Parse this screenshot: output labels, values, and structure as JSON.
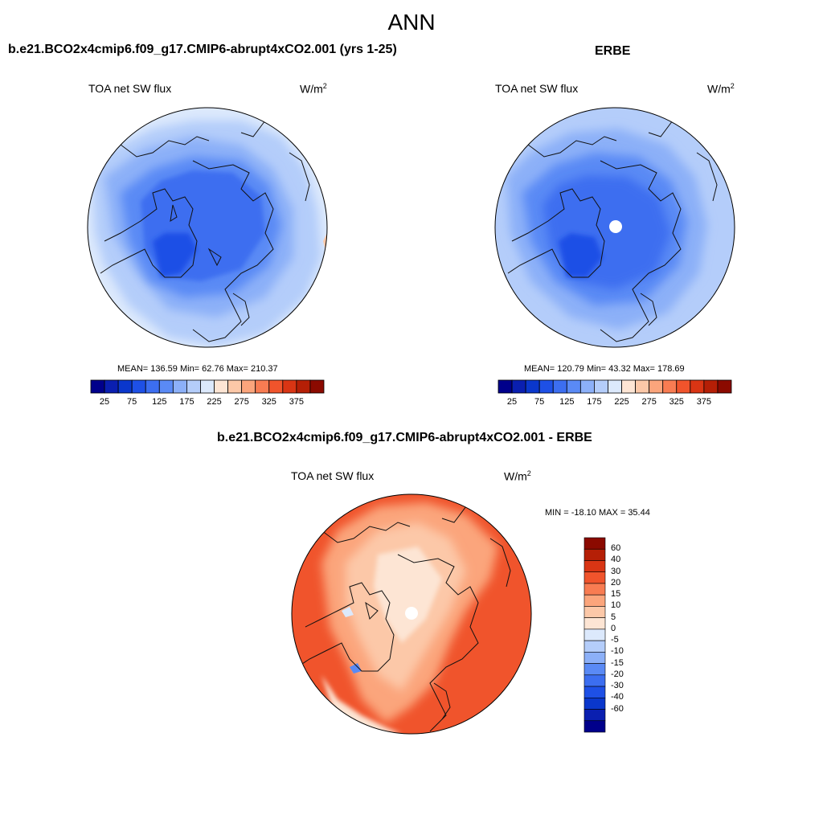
{
  "main_title": "ANN",
  "colors": {
    "palette": [
      "#00008b",
      "#0a1fb0",
      "#0a37cc",
      "#1e50e6",
      "#3c6ef0",
      "#5a8af5",
      "#8cb0f8",
      "#b4cdfa",
      "#dce9fc",
      "#fde5d4",
      "#fcc8a8",
      "#fba57c",
      "#f87c52",
      "#f0542c",
      "#d93514",
      "#b51f06",
      "#8b0a00"
    ],
    "polar_land": "#111111"
  },
  "panels": [
    {
      "id": "model",
      "title": "b.e21.BCO2x4cmip6.f09_g17.CMIP6-abrupt4xCO2.001 (yrs 1-25)",
      "variable": "TOA net SW flux",
      "units_base": "W/m",
      "units_exp": "2",
      "stats": "MEAN= 136.59  Min=  62.76  Max= 210.37",
      "colorbar_ticks": [
        "25",
        "75",
        "125",
        "175",
        "225",
        "275",
        "325",
        "375"
      ]
    },
    {
      "id": "obs",
      "title": "ERBE",
      "variable": "TOA net SW flux",
      "units_base": "W/m",
      "units_exp": "2",
      "stats": "MEAN= 120.79  Min=  43.32  Max= 178.69",
      "colorbar_ticks": [
        "25",
        "75",
        "125",
        "175",
        "225",
        "275",
        "325",
        "375"
      ]
    },
    {
      "id": "diff",
      "title": "b.e21.BCO2x4cmip6.f09_g17.CMIP6-abrupt4xCO2.001 - ERBE",
      "variable": "TOA net SW flux",
      "units_base": "W/m",
      "units_exp": "2",
      "stats": "MIN = -18.10 MAX =  35.44",
      "colorbar_ticks": [
        "60",
        "40",
        "30",
        "20",
        "15",
        "10",
        "5",
        "0",
        "-5",
        "-10",
        "-15",
        "-20",
        "-30",
        "-40",
        "-60"
      ]
    }
  ]
}
